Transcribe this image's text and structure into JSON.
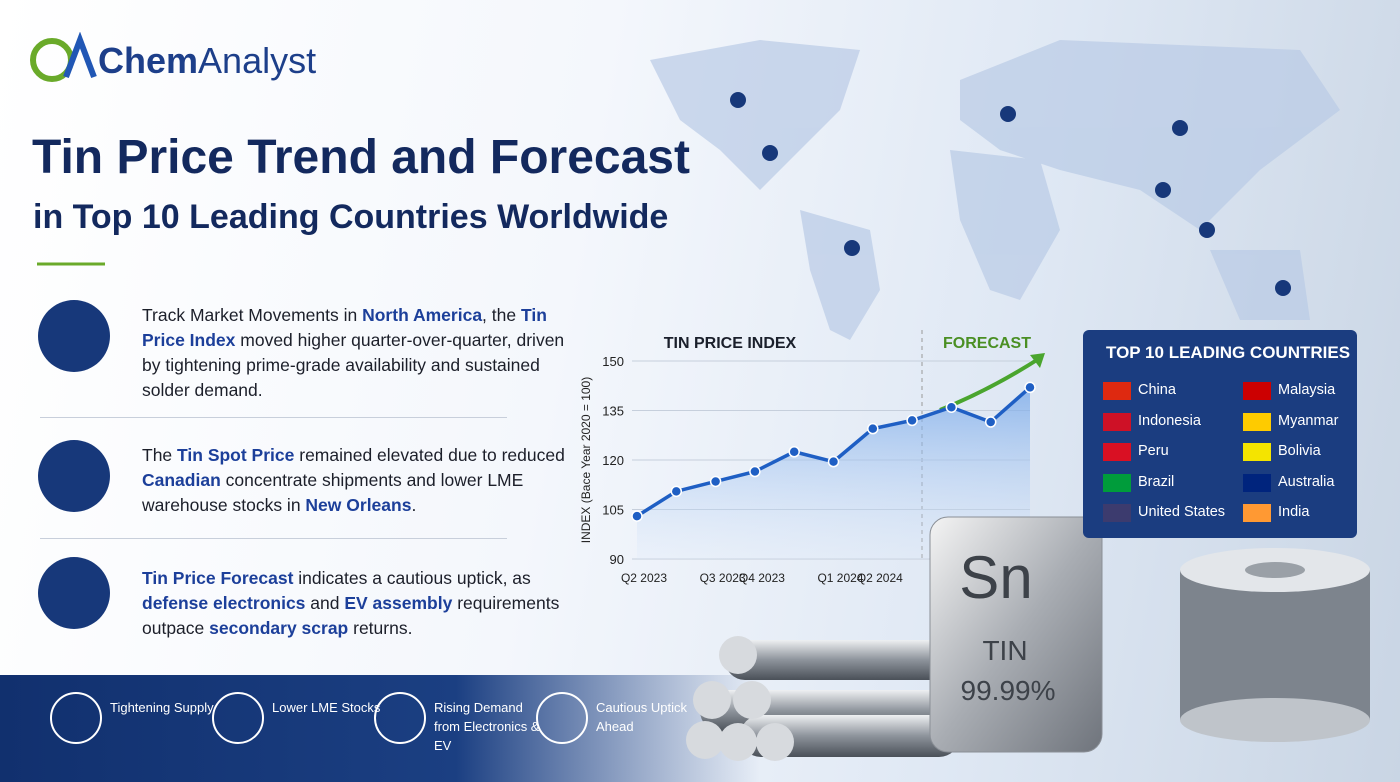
{
  "header": {
    "logo_part1": "Chem",
    "logo_part2": "Analyst",
    "title": "Tin Price Trend and Forecast",
    "subtitle": "in Top 10 Leading Countries Worldwide"
  },
  "bullets": [
    [
      {
        "text": "Track Market Movements in "
      },
      {
        "text": "North America",
        "highlight": true
      },
      {
        "text": ", the "
      },
      {
        "text": "Tin Price Index",
        "highlight": true
      },
      {
        "text": " moved higher quarter-over-quarter, driven by tightening prime-grade availability and sustained solder demand."
      }
    ],
    [
      {
        "text": "The "
      },
      {
        "text": "Tin Spot Price",
        "highlight": true
      },
      {
        "text": " remained elevated due to reduced "
      },
      {
        "text": "Canadian",
        "highlight": true
      },
      {
        "text": " concentrate shipments and lower LME warehouse stocks in "
      },
      {
        "text": "New Orleans",
        "highlight": true
      },
      {
        "text": "."
      }
    ],
    [
      {
        "text": "Tin Price Forecast",
        "highlight": true
      },
      {
        "text": " indicates a cautious uptick, as "
      },
      {
        "text": "defense electronics",
        "highlight": true
      },
      {
        "text": " and "
      },
      {
        "text": "EV assembly",
        "highlight": true
      },
      {
        "text": " requirements outpace "
      },
      {
        "text": "secondary scrap",
        "highlight": true
      },
      {
        "text": " returns."
      }
    ]
  ],
  "chart_data": {
    "type": "line",
    "title": "TIN PRICE INDEX",
    "annotation": "FORECAST",
    "y_label": "INDEX (Bace Year 2020 = 100)",
    "categories": [
      "Q2 2023",
      null,
      "Q3 2023",
      "Q4 2023",
      null,
      "Q1 2024",
      "Q2 2024",
      null,
      null,
      null,
      null
    ],
    "values": [
      103,
      110.5,
      113.5,
      116.5,
      122.5,
      119.5,
      129.5,
      132,
      136,
      131.5,
      142
    ],
    "color": "#1f5fc4",
    "ylim": [
      90,
      150
    ],
    "yticks": [
      90,
      105,
      120,
      135,
      150
    ]
  },
  "countries": {
    "title": "TOP 10 LEADING COUNTRIES",
    "names": [
      "China",
      "Malaysia",
      "Indonesia",
      "Myanmar",
      "Peru",
      "Bolivia",
      "Brazil",
      "Australia",
      "United States",
      "India"
    ]
  },
  "ingot": {
    "symbol": "Sn",
    "name": "TIN",
    "purity": "99.99%"
  },
  "footer": [
    "Tightening Supply",
    "Lower LME Stocks",
    "Rising Demand from Electronics & EV",
    "Cautious Uptick Ahead"
  ]
}
